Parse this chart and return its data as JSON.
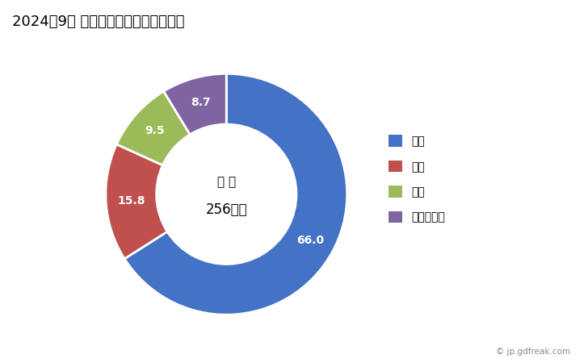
{
  "title": "2024年9月 輸出相手国のシェア（％）",
  "title_fontsize": 13,
  "center_label_line1": "総 額",
  "center_label_line2": "256万円",
  "slices": [
    {
      "label": "韓国",
      "value": 66.0,
      "color": "#4472C4"
    },
    {
      "label": "米国",
      "value": 15.8,
      "color": "#C0504D"
    },
    {
      "label": "中国",
      "value": 9.5,
      "color": "#9BBB59"
    },
    {
      "label": "マレーシア",
      "value": 8.7,
      "color": "#8064A2"
    }
  ],
  "donut_width": 0.42,
  "background_color": "#FFFFFF",
  "legend_fontsize": 10,
  "label_fontsize": 10,
  "watermark": "© jp.gdfreak.com"
}
